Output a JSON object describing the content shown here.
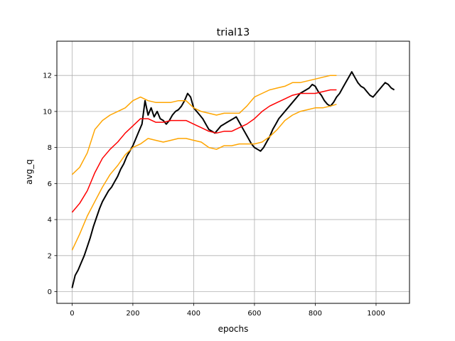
{
  "chart_data": {
    "type": "line",
    "title": "trial13",
    "xlabel": "epochs",
    "ylabel": "avg_q",
    "xlim": [
      -50,
      1110
    ],
    "ylim": [
      -0.65,
      13.9
    ],
    "xticks": [
      0,
      200,
      400,
      600,
      800,
      1000
    ],
    "yticks": [
      0,
      2,
      4,
      6,
      8,
      10,
      12
    ],
    "grid": true,
    "series": [
      {
        "role": "raw",
        "color": "#000000",
        "x": [
          0,
          10,
          20,
          30,
          40,
          50,
          60,
          70,
          80,
          90,
          100,
          110,
          120,
          130,
          140,
          150,
          160,
          170,
          180,
          190,
          200,
          210,
          220,
          230,
          240,
          250,
          260,
          270,
          280,
          290,
          300,
          310,
          320,
          330,
          340,
          350,
          360,
          370,
          380,
          390,
          400,
          410,
          420,
          430,
          440,
          450,
          460,
          470,
          480,
          490,
          500,
          510,
          520,
          530,
          540,
          550,
          560,
          570,
          580,
          590,
          600,
          610,
          620,
          630,
          640,
          650,
          660,
          670,
          680,
          690,
          700,
          710,
          720,
          730,
          740,
          750,
          760,
          770,
          780,
          790,
          800,
          810,
          820,
          830,
          840,
          850,
          860,
          870,
          880,
          890,
          900,
          910,
          920,
          930,
          940,
          950,
          960,
          970,
          980,
          990,
          1000,
          1010,
          1020,
          1030,
          1040,
          1050,
          1060
        ],
        "y": [
          0.2,
          0.9,
          1.2,
          1.6,
          2.0,
          2.5,
          3.0,
          3.6,
          4.1,
          4.6,
          5.0,
          5.3,
          5.6,
          5.8,
          6.1,
          6.4,
          6.8,
          7.1,
          7.5,
          7.8,
          8.1,
          8.5,
          8.9,
          9.3,
          10.6,
          9.8,
          10.2,
          9.7,
          10.0,
          9.6,
          9.5,
          9.3,
          9.5,
          9.8,
          10.0,
          10.1,
          10.3,
          10.6,
          11.0,
          10.8,
          10.2,
          10.0,
          9.8,
          9.6,
          9.3,
          9.0,
          8.9,
          8.8,
          9.0,
          9.2,
          9.3,
          9.4,
          9.5,
          9.6,
          9.7,
          9.4,
          9.1,
          8.8,
          8.5,
          8.2,
          8.0,
          7.9,
          7.8,
          8.0,
          8.3,
          8.6,
          9.0,
          9.3,
          9.6,
          9.8,
          10.0,
          10.2,
          10.4,
          10.6,
          10.8,
          11.0,
          11.1,
          11.2,
          11.3,
          11.5,
          11.4,
          11.1,
          10.9,
          10.6,
          10.4,
          10.3,
          10.5,
          10.8,
          11.0,
          11.3,
          11.6,
          11.9,
          12.2,
          11.9,
          11.6,
          11.4,
          11.3,
          11.1,
          10.9,
          10.8,
          11.0,
          11.2,
          11.4,
          11.6,
          11.5,
          11.3,
          11.2
        ]
      },
      {
        "role": "mean",
        "color": "#ff0000",
        "x": [
          0,
          25,
          50,
          75,
          100,
          125,
          150,
          175,
          200,
          225,
          250,
          275,
          300,
          325,
          350,
          375,
          400,
          425,
          450,
          475,
          500,
          525,
          550,
          575,
          600,
          625,
          650,
          675,
          700,
          725,
          750,
          775,
          800,
          825,
          850,
          870
        ],
        "y": [
          4.4,
          4.9,
          5.6,
          6.6,
          7.4,
          7.9,
          8.3,
          8.8,
          9.2,
          9.6,
          9.6,
          9.4,
          9.4,
          9.5,
          9.5,
          9.5,
          9.3,
          9.1,
          8.9,
          8.8,
          8.9,
          8.9,
          9.1,
          9.3,
          9.6,
          10.0,
          10.3,
          10.5,
          10.7,
          10.9,
          11.0,
          11.0,
          11.0,
          11.1,
          11.2,
          11.2
        ]
      },
      {
        "role": "upper",
        "color": "#ffa500",
        "x": [
          0,
          25,
          50,
          75,
          100,
          125,
          150,
          175,
          200,
          225,
          250,
          275,
          300,
          325,
          350,
          375,
          400,
          425,
          450,
          475,
          500,
          525,
          550,
          575,
          600,
          625,
          650,
          675,
          700,
          725,
          750,
          775,
          800,
          825,
          850,
          870
        ],
        "y": [
          6.5,
          6.9,
          7.7,
          9.0,
          9.5,
          9.8,
          10.0,
          10.2,
          10.6,
          10.8,
          10.6,
          10.5,
          10.5,
          10.5,
          10.6,
          10.6,
          10.2,
          10.0,
          9.9,
          9.8,
          9.9,
          9.9,
          9.9,
          10.3,
          10.8,
          11.0,
          11.2,
          11.3,
          11.4,
          11.6,
          11.6,
          11.7,
          11.8,
          11.9,
          12.0,
          12.0
        ]
      },
      {
        "role": "lower",
        "color": "#ffa500",
        "x": [
          0,
          25,
          50,
          75,
          100,
          125,
          150,
          175,
          200,
          225,
          250,
          275,
          300,
          325,
          350,
          375,
          400,
          425,
          450,
          475,
          500,
          525,
          550,
          575,
          600,
          625,
          650,
          675,
          700,
          725,
          750,
          775,
          800,
          825,
          850,
          870
        ],
        "y": [
          2.3,
          3.2,
          4.2,
          5.0,
          5.8,
          6.5,
          7.0,
          7.6,
          8.0,
          8.2,
          8.5,
          8.4,
          8.3,
          8.4,
          8.5,
          8.5,
          8.4,
          8.3,
          8.0,
          7.9,
          8.1,
          8.1,
          8.2,
          8.2,
          8.2,
          8.3,
          8.6,
          9.0,
          9.5,
          9.8,
          10.0,
          10.1,
          10.2,
          10.2,
          10.3,
          10.4
        ]
      }
    ]
  }
}
